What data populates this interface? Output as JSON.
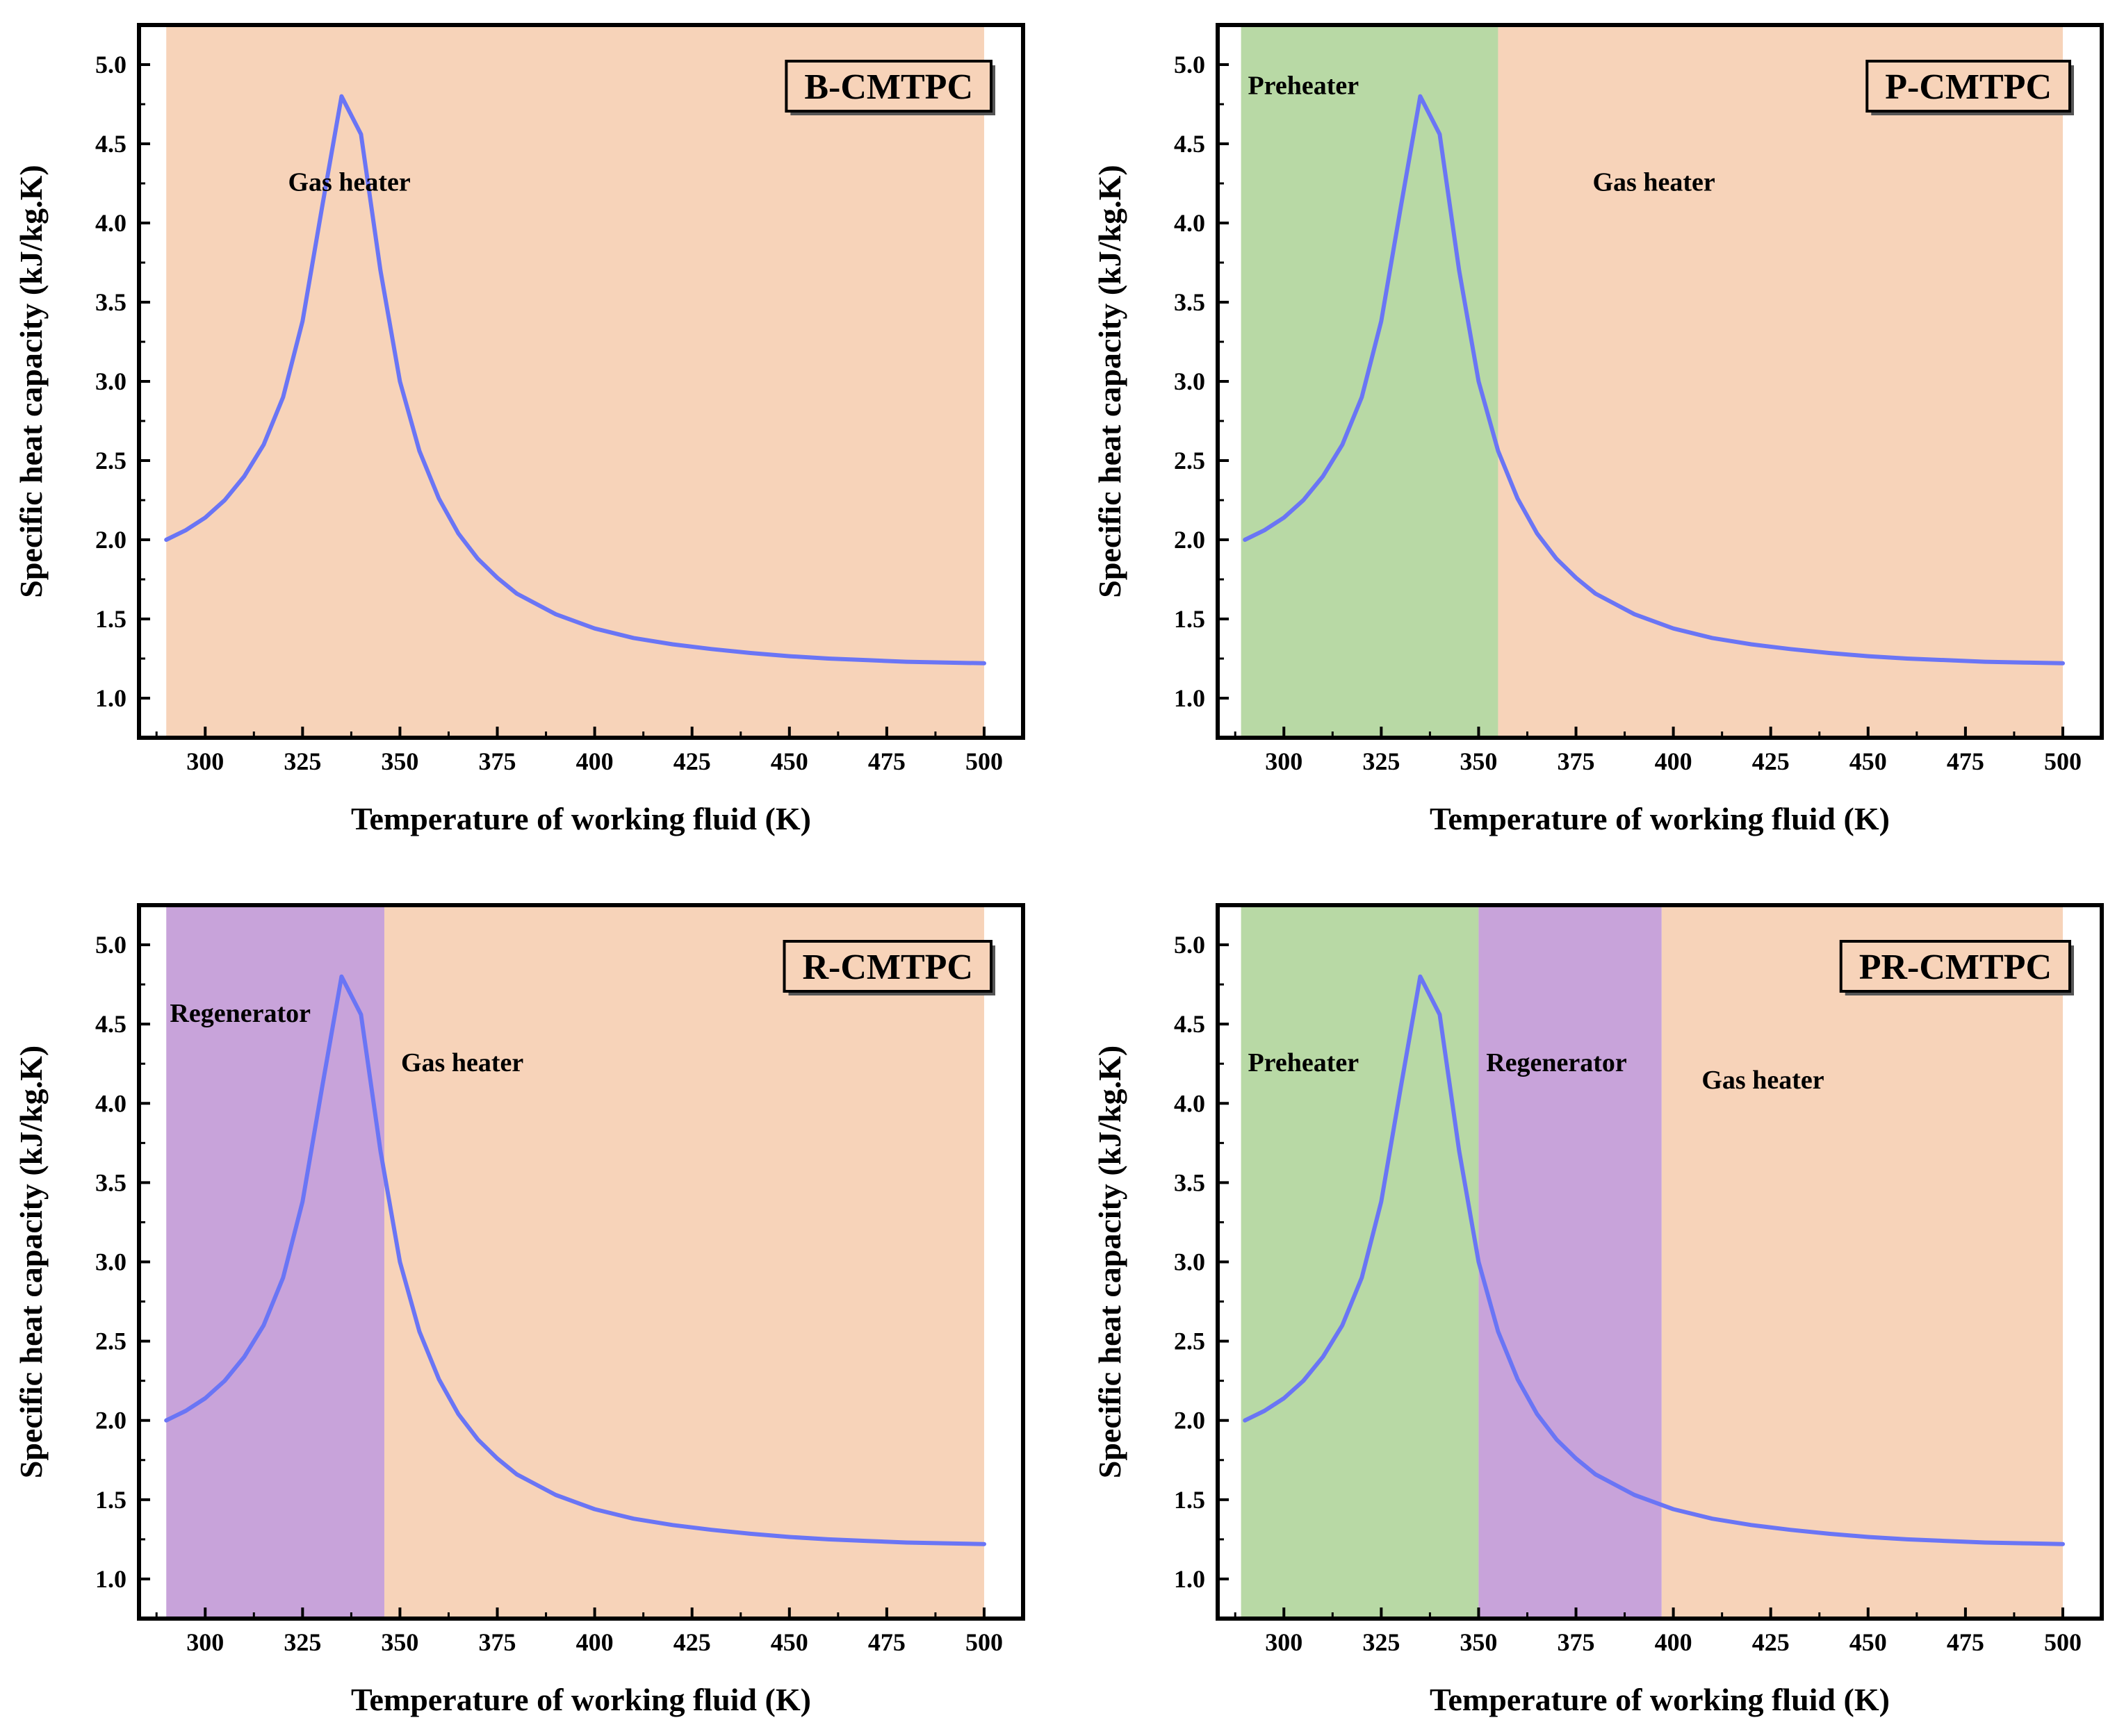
{
  "chart_data": [
    {
      "type": "line",
      "title": "B-CMTPC",
      "xlabel": "Temperature of working fluid (K)",
      "ylabel": "Specific heat capacity (kJ/kg.K)",
      "xlim": [
        283,
        510
      ],
      "ylim": [
        0.75,
        5.25
      ],
      "xticks": [
        300,
        325,
        350,
        375,
        400,
        425,
        450,
        475,
        500
      ],
      "yticks": [
        1.0,
        1.5,
        2.0,
        2.5,
        3.0,
        3.5,
        4.0,
        4.5,
        5.0
      ],
      "regions": [
        {
          "name": "Gas heater",
          "from": 290,
          "to": 500,
          "color": "#f7d3b9",
          "label_x": 337,
          "label_y": 4.26
        }
      ],
      "series": [
        {
          "name": "Specific heat capacity",
          "color": "#6a75f5",
          "x": [
            290,
            295,
            300,
            305,
            310,
            315,
            320,
            325,
            330,
            335,
            340,
            345,
            350,
            355,
            360,
            365,
            370,
            375,
            380,
            390,
            400,
            410,
            420,
            430,
            440,
            450,
            460,
            470,
            480,
            490,
            500
          ],
          "y": [
            2.0,
            2.06,
            2.14,
            2.25,
            2.4,
            2.6,
            2.9,
            3.38,
            4.1,
            4.8,
            4.56,
            3.7,
            3.0,
            2.56,
            2.26,
            2.04,
            1.88,
            1.76,
            1.66,
            1.53,
            1.44,
            1.38,
            1.34,
            1.31,
            1.285,
            1.265,
            1.25,
            1.24,
            1.23,
            1.225,
            1.22
          ]
        }
      ]
    },
    {
      "type": "line",
      "title": "P-CMTPC",
      "xlabel": "Temperature of working fluid (K)",
      "ylabel": "Specific heat capacity (kJ/kg.K)",
      "xlim": [
        283,
        510
      ],
      "ylim": [
        0.75,
        5.25
      ],
      "xticks": [
        300,
        325,
        350,
        375,
        400,
        425,
        450,
        475,
        500
      ],
      "yticks": [
        1.0,
        1.5,
        2.0,
        2.5,
        3.0,
        3.5,
        4.0,
        4.5,
        5.0
      ],
      "regions": [
        {
          "name": "Preheater",
          "from": 289,
          "to": 355,
          "color": "#b8d9a5",
          "label_x": 305,
          "label_y": 4.87
        },
        {
          "name": "Gas heater",
          "from": 355,
          "to": 500,
          "color": "#f7d3b9",
          "label_x": 395,
          "label_y": 4.26
        }
      ],
      "series": [
        {
          "name": "Specific heat capacity",
          "color": "#6a75f5",
          "x": [
            290,
            295,
            300,
            305,
            310,
            315,
            320,
            325,
            330,
            335,
            340,
            345,
            350,
            355,
            360,
            365,
            370,
            375,
            380,
            390,
            400,
            410,
            420,
            430,
            440,
            450,
            460,
            470,
            480,
            490,
            500
          ],
          "y": [
            2.0,
            2.06,
            2.14,
            2.25,
            2.4,
            2.6,
            2.9,
            3.38,
            4.1,
            4.8,
            4.56,
            3.7,
            3.0,
            2.56,
            2.26,
            2.04,
            1.88,
            1.76,
            1.66,
            1.53,
            1.44,
            1.38,
            1.34,
            1.31,
            1.285,
            1.265,
            1.25,
            1.24,
            1.23,
            1.225,
            1.22
          ]
        }
      ]
    },
    {
      "type": "line",
      "title": "R-CMTPC",
      "xlabel": "Temperature of working fluid (K)",
      "ylabel": "Specific heat capacity (kJ/kg.K)",
      "xlim": [
        283,
        510
      ],
      "ylim": [
        0.75,
        5.25
      ],
      "xticks": [
        300,
        325,
        350,
        375,
        400,
        425,
        450,
        475,
        500
      ],
      "yticks": [
        1.0,
        1.5,
        2.0,
        2.5,
        3.0,
        3.5,
        4.0,
        4.5,
        5.0
      ],
      "regions": [
        {
          "name": "Regenerator",
          "from": 290,
          "to": 346,
          "color": "#c8a3da",
          "label_x": 309,
          "label_y": 4.57
        },
        {
          "name": "Gas heater",
          "from": 346,
          "to": 500,
          "color": "#f7d3b9",
          "label_x": 366,
          "label_y": 4.26
        }
      ],
      "series": [
        {
          "name": "Specific heat capacity",
          "color": "#6a75f5",
          "x": [
            290,
            295,
            300,
            305,
            310,
            315,
            320,
            325,
            330,
            335,
            340,
            345,
            350,
            355,
            360,
            365,
            370,
            375,
            380,
            390,
            400,
            410,
            420,
            430,
            440,
            450,
            460,
            470,
            480,
            490,
            500
          ],
          "y": [
            2.0,
            2.06,
            2.14,
            2.25,
            2.4,
            2.6,
            2.9,
            3.38,
            4.1,
            4.8,
            4.56,
            3.7,
            3.0,
            2.56,
            2.26,
            2.04,
            1.88,
            1.76,
            1.66,
            1.53,
            1.44,
            1.38,
            1.34,
            1.31,
            1.285,
            1.265,
            1.25,
            1.24,
            1.23,
            1.225,
            1.22
          ]
        }
      ]
    },
    {
      "type": "line",
      "title": "PR-CMTPC",
      "xlabel": "Temperature of working fluid (K)",
      "ylabel": "Specific heat capacity (kJ/kg.K)",
      "xlim": [
        283,
        510
      ],
      "ylim": [
        0.75,
        5.25
      ],
      "xticks": [
        300,
        325,
        350,
        375,
        400,
        425,
        450,
        475,
        500
      ],
      "yticks": [
        1.0,
        1.5,
        2.0,
        2.5,
        3.0,
        3.5,
        4.0,
        4.5,
        5.0
      ],
      "regions": [
        {
          "name": "Preheater",
          "from": 289,
          "to": 350,
          "color": "#b8d9a5",
          "label_x": 305,
          "label_y": 4.26
        },
        {
          "name": "Regenerator",
          "from": 350,
          "to": 397,
          "color": "#c8a3da",
          "label_x": 370,
          "label_y": 4.26
        },
        {
          "name": "Gas heater",
          "from": 397,
          "to": 500,
          "color": "#f7d3b9",
          "label_x": 423,
          "label_y": 4.15
        }
      ],
      "series": [
        {
          "name": "Specific heat capacity",
          "color": "#6a75f5",
          "x": [
            290,
            295,
            300,
            305,
            310,
            315,
            320,
            325,
            330,
            335,
            340,
            345,
            350,
            355,
            360,
            365,
            370,
            375,
            380,
            390,
            400,
            410,
            420,
            430,
            440,
            450,
            460,
            470,
            480,
            490,
            500
          ],
          "y": [
            2.0,
            2.06,
            2.14,
            2.25,
            2.4,
            2.6,
            2.9,
            3.38,
            4.1,
            4.8,
            4.56,
            3.7,
            3.0,
            2.56,
            2.26,
            2.04,
            1.88,
            1.76,
            1.66,
            1.53,
            1.44,
            1.38,
            1.34,
            1.31,
            1.285,
            1.265,
            1.25,
            1.24,
            1.23,
            1.225,
            1.22
          ]
        }
      ]
    }
  ]
}
